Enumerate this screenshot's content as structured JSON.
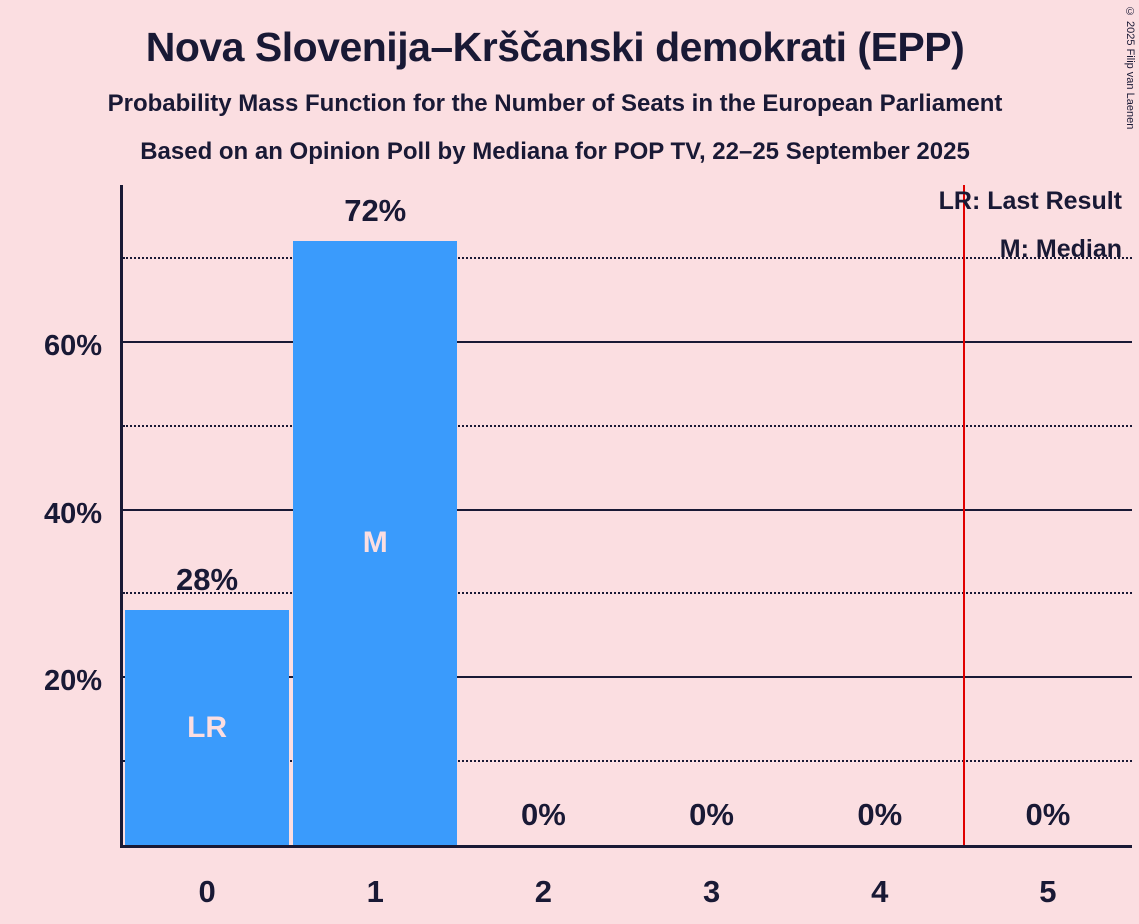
{
  "page": {
    "title": "Nova Slovenija–Krščanski demokrati (EPP)",
    "subtitle_line1": "Probability Mass Function for the Number of Seats in the European Parliament",
    "subtitle_line2": "Based on an Opinion Poll by Mediana for POP TV, 22–25 September 2025",
    "copyright": "© 2025 Filip van Laenen"
  },
  "legend": {
    "lr": "LR: Last Result",
    "m": "M: Median"
  },
  "chart_data": {
    "type": "bar",
    "title": "Nova Slovenija–Krščanski demokrati (EPP)",
    "xlabel": "",
    "ylabel": "",
    "categories": [
      "0",
      "1",
      "2",
      "3",
      "4",
      "5"
    ],
    "values": [
      28,
      72,
      0,
      0,
      0,
      0
    ],
    "bar_labels": [
      "28%",
      "72%",
      "0%",
      "0%",
      "0%",
      "0%"
    ],
    "inner_labels": [
      "LR",
      "M",
      "",
      "",
      "",
      ""
    ],
    "ytick_values": [
      20,
      40,
      60
    ],
    "ytick_labels": [
      "20%",
      "40%",
      "60%"
    ],
    "solid_gridlines": [
      20,
      40,
      60
    ],
    "dotted_gridlines": [
      10,
      30,
      50,
      70
    ],
    "ylim": [
      0,
      78.7
    ],
    "red_line_x": 4.5,
    "legend_position": "top-right",
    "grid": true,
    "colors": {
      "background": "#fbdee1",
      "bar": "#3a9bfc",
      "text": "#191935",
      "red_line": "#e00000"
    }
  }
}
